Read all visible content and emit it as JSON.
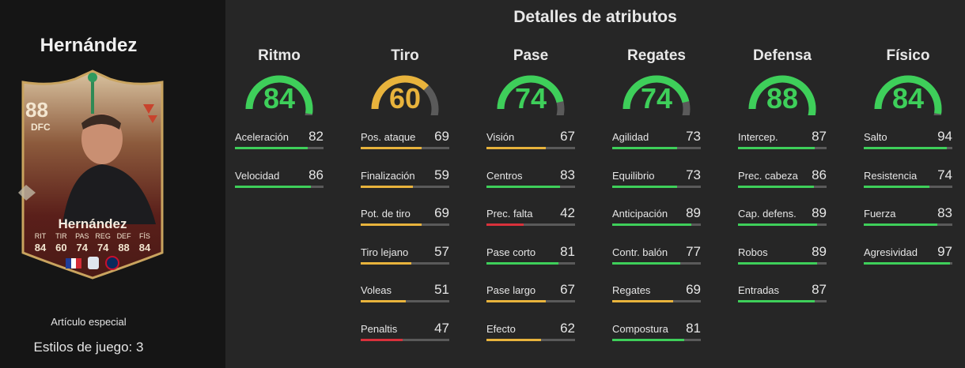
{
  "player": {
    "name": "Hernández",
    "card_name": "Hernández",
    "rating": "88",
    "position": "DFC",
    "card_stats": [
      {
        "label": "RIT",
        "value": "84"
      },
      {
        "label": "TIR",
        "value": "60"
      },
      {
        "label": "PAS",
        "value": "74"
      },
      {
        "label": "REG",
        "value": "74"
      },
      {
        "label": "DEF",
        "value": "88"
      },
      {
        "label": "FÍS",
        "value": "84"
      }
    ],
    "item_type": "Artículo especial",
    "playstyles": "Estilos de juego: 3"
  },
  "details_title": "Detalles de atributos",
  "colors": {
    "green": "#3ecf5a",
    "yellow": "#e8b33c",
    "red": "#d9313b",
    "track": "#5a5a5a"
  },
  "groups": [
    {
      "name": "Ritmo",
      "value": "84",
      "level": 84,
      "color": "green",
      "attributes": [
        {
          "name": "Aceleración",
          "value": "82",
          "level": 82,
          "color": "green"
        },
        {
          "name": "Velocidad",
          "value": "86",
          "level": 86,
          "color": "green"
        }
      ]
    },
    {
      "name": "Tiro",
      "value": "60",
      "level": 60,
      "color": "yellow",
      "attributes": [
        {
          "name": "Pos. ataque",
          "value": "69",
          "level": 69,
          "color": "yellow"
        },
        {
          "name": "Finalización",
          "value": "59",
          "level": 59,
          "color": "yellow"
        },
        {
          "name": "Pot. de tiro",
          "value": "69",
          "level": 69,
          "color": "yellow"
        },
        {
          "name": "Tiro lejano",
          "value": "57",
          "level": 57,
          "color": "yellow"
        },
        {
          "name": "Voleas",
          "value": "51",
          "level": 51,
          "color": "yellow"
        },
        {
          "name": "Penaltis",
          "value": "47",
          "level": 47,
          "color": "red"
        }
      ]
    },
    {
      "name": "Pase",
      "value": "74",
      "level": 74,
      "color": "green",
      "attributes": [
        {
          "name": "Visión",
          "value": "67",
          "level": 67,
          "color": "yellow"
        },
        {
          "name": "Centros",
          "value": "83",
          "level": 83,
          "color": "green"
        },
        {
          "name": "Prec. falta",
          "value": "42",
          "level": 42,
          "color": "red"
        },
        {
          "name": "Pase corto",
          "value": "81",
          "level": 81,
          "color": "green"
        },
        {
          "name": "Pase largo",
          "value": "67",
          "level": 67,
          "color": "yellow"
        },
        {
          "name": "Efecto",
          "value": "62",
          "level": 62,
          "color": "yellow"
        }
      ]
    },
    {
      "name": "Regates",
      "value": "74",
      "level": 74,
      "color": "green",
      "attributes": [
        {
          "name": "Agilidad",
          "value": "73",
          "level": 73,
          "color": "green"
        },
        {
          "name": "Equilibrio",
          "value": "73",
          "level": 73,
          "color": "green"
        },
        {
          "name": "Anticipación",
          "value": "89",
          "level": 89,
          "color": "green"
        },
        {
          "name": "Contr. balón",
          "value": "77",
          "level": 77,
          "color": "green"
        },
        {
          "name": "Regates",
          "value": "69",
          "level": 69,
          "color": "yellow"
        },
        {
          "name": "Compostura",
          "value": "81",
          "level": 81,
          "color": "green"
        }
      ]
    },
    {
      "name": "Defensa",
      "value": "88",
      "level": 88,
      "color": "green",
      "attributes": [
        {
          "name": "Intercep.",
          "value": "87",
          "level": 87,
          "color": "green"
        },
        {
          "name": "Prec. cabeza",
          "value": "86",
          "level": 86,
          "color": "green"
        },
        {
          "name": "Cap. defens.",
          "value": "89",
          "level": 89,
          "color": "green"
        },
        {
          "name": "Robos",
          "value": "89",
          "level": 89,
          "color": "green"
        },
        {
          "name": "Entradas",
          "value": "87",
          "level": 87,
          "color": "green"
        }
      ]
    },
    {
      "name": "Físico",
      "value": "84",
      "level": 84,
      "color": "green",
      "attributes": [
        {
          "name": "Salto",
          "value": "94",
          "level": 94,
          "color": "green"
        },
        {
          "name": "Resistencia",
          "value": "74",
          "level": 74,
          "color": "green"
        },
        {
          "name": "Fuerza",
          "value": "83",
          "level": 83,
          "color": "green"
        },
        {
          "name": "Agresividad",
          "value": "97",
          "level": 97,
          "color": "green"
        }
      ]
    }
  ]
}
